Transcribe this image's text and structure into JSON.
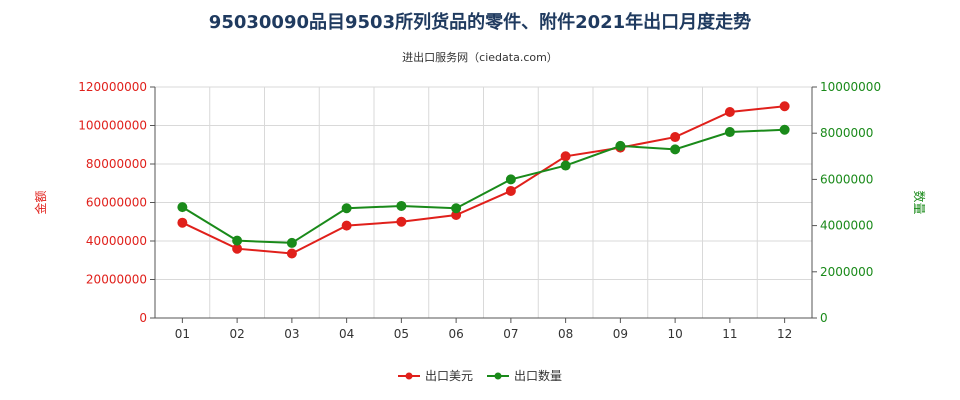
{
  "chart_data": {
    "type": "line",
    "title": "95030090品目9503所列货品的零件、附件2021年出口月度走势",
    "subtitle": "进出口服务网（ciedata.com）",
    "categories": [
      "01",
      "02",
      "03",
      "04",
      "05",
      "06",
      "07",
      "08",
      "09",
      "10",
      "11",
      "12"
    ],
    "y_left": {
      "label": "金额",
      "range": [
        0,
        120000000
      ],
      "ticks": [
        "0",
        "20000000",
        "40000000",
        "60000000",
        "80000000",
        "100000000",
        "120000000"
      ],
      "color": "#e0201b"
    },
    "y_right": {
      "label": "数量",
      "range": [
        0,
        10000000
      ],
      "ticks": [
        "0",
        "2000000",
        "4000000",
        "6000000",
        "8000000",
        "10000000"
      ],
      "color": "#1a8a1a"
    },
    "series": [
      {
        "name": "出口美元",
        "axis": "left",
        "color": "#e0201b",
        "values": [
          49500000,
          36000000,
          33500000,
          48000000,
          50000000,
          53500000,
          66000000,
          84000000,
          88500000,
          94000000,
          107000000,
          110000000
        ]
      },
      {
        "name": "出口数量",
        "axis": "right",
        "color": "#1a8a1a",
        "values": [
          4800000,
          3350000,
          3250000,
          4750000,
          4850000,
          4750000,
          6000000,
          6600000,
          7450000,
          7300000,
          8050000,
          8150000
        ]
      }
    ],
    "grid": true,
    "legend_position": "bottom-center"
  }
}
